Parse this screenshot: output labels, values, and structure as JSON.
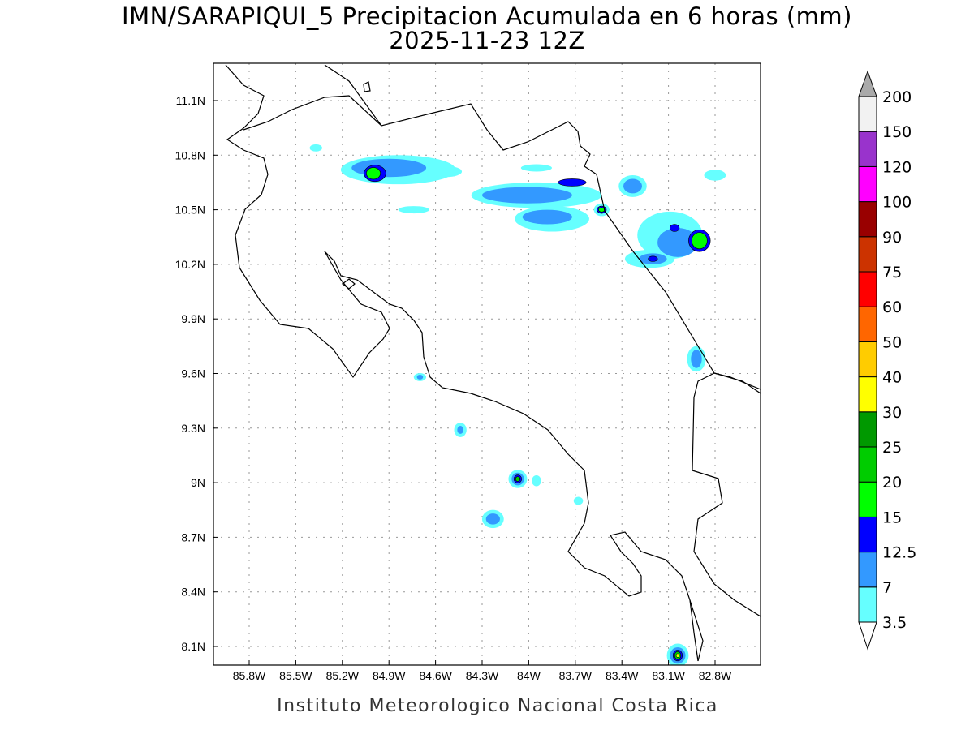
{
  "title": "IMN/SARAPIQUI_5 Precipitacion Acumulada en 6 horas (mm)",
  "subtitle": "2025-11-23 12Z",
  "footer": "Instituto Meteorologico Nacional Costa Rica",
  "lon_ticks": [
    "85.8W",
    "85.5W",
    "85.2W",
    "84.9W",
    "84.6W",
    "84.3W",
    "84W",
    "83.7W",
    "83.4W",
    "83.1W",
    "82.8W"
  ],
  "lat_ticks": [
    "11.1N",
    "10.8N",
    "10.5N",
    "10.2N",
    "9.9N",
    "9.6N",
    "9.3N",
    "9N",
    "8.7N",
    "8.4N",
    "8.1N"
  ],
  "legend": {
    "levels": [
      "3.5",
      "7",
      "12.5",
      "15",
      "20",
      "25",
      "30",
      "40",
      "50",
      "60",
      "75",
      "90",
      "100",
      "120",
      "150",
      "200"
    ],
    "colors": [
      "#66ffff",
      "#3399ff",
      "#0000ff",
      "#00ff00",
      "#00cc00",
      "#009900",
      "#ffff00",
      "#ffcc00",
      "#ff6600",
      "#ff0000",
      "#cc3300",
      "#990000",
      "#ff00ff",
      "#9933cc",
      "#f2f2f2"
    ],
    "overflow_color": "#aaaaaa"
  },
  "precip_cells": [
    {
      "lon": 84.84,
      "lat": 10.72,
      "rlon": 0.37,
      "rlat": 0.08,
      "level": 0
    },
    {
      "lon": 84.9,
      "lat": 10.73,
      "rlon": 0.24,
      "rlat": 0.05,
      "level": 1
    },
    {
      "lon": 84.99,
      "lat": 10.7,
      "rlon": 0.07,
      "rlat": 0.045,
      "level": 2
    },
    {
      "lon": 85.0,
      "lat": 10.7,
      "rlon": 0.045,
      "rlat": 0.032,
      "level": 3
    },
    {
      "lon": 84.53,
      "lat": 10.71,
      "rlon": 0.1,
      "rlat": 0.03,
      "level": 0
    },
    {
      "lon": 85.37,
      "lat": 10.84,
      "rlon": 0.04,
      "rlat": 0.02,
      "level": 0
    },
    {
      "lon": 84.74,
      "lat": 10.5,
      "rlon": 0.1,
      "rlat": 0.02,
      "level": 0
    },
    {
      "lon": 83.95,
      "lat": 10.73,
      "rlon": 0.1,
      "rlat": 0.02,
      "level": 0
    },
    {
      "lon": 83.95,
      "lat": 10.58,
      "rlon": 0.42,
      "rlat": 0.07,
      "level": 0
    },
    {
      "lon": 84.01,
      "lat": 10.58,
      "rlon": 0.29,
      "rlat": 0.045,
      "level": 1
    },
    {
      "lon": 83.72,
      "lat": 10.65,
      "rlon": 0.09,
      "rlat": 0.02,
      "level": 2
    },
    {
      "lon": 83.85,
      "lat": 10.45,
      "rlon": 0.24,
      "rlat": 0.07,
      "level": 0
    },
    {
      "lon": 83.88,
      "lat": 10.46,
      "rlon": 0.16,
      "rlat": 0.04,
      "level": 1
    },
    {
      "lon": 83.53,
      "lat": 10.5,
      "rlon": 0.05,
      "rlat": 0.035,
      "level": 0
    },
    {
      "lon": 83.53,
      "lat": 10.5,
      "rlon": 0.03,
      "rlat": 0.02,
      "level": 2
    },
    {
      "lon": 83.53,
      "lat": 10.5,
      "rlon": 0.02,
      "rlat": 0.012,
      "level": 3
    },
    {
      "lon": 83.33,
      "lat": 10.63,
      "rlon": 0.09,
      "rlat": 0.06,
      "level": 0
    },
    {
      "lon": 83.33,
      "lat": 10.63,
      "rlon": 0.06,
      "rlat": 0.04,
      "level": 1
    },
    {
      "lon": 83.09,
      "lat": 10.36,
      "rlon": 0.21,
      "rlat": 0.13,
      "level": 0
    },
    {
      "lon": 83.04,
      "lat": 10.32,
      "rlon": 0.13,
      "rlat": 0.08,
      "level": 1
    },
    {
      "lon": 83.06,
      "lat": 10.4,
      "rlon": 0.03,
      "rlat": 0.02,
      "level": 2
    },
    {
      "lon": 82.9,
      "lat": 10.33,
      "rlon": 0.07,
      "rlat": 0.06,
      "level": 2
    },
    {
      "lon": 82.9,
      "lat": 10.33,
      "rlon": 0.05,
      "rlat": 0.045,
      "level": 3
    },
    {
      "lon": 83.22,
      "lat": 10.23,
      "rlon": 0.16,
      "rlat": 0.05,
      "level": 0
    },
    {
      "lon": 83.2,
      "lat": 10.23,
      "rlon": 0.09,
      "rlat": 0.03,
      "level": 1
    },
    {
      "lon": 83.2,
      "lat": 10.23,
      "rlon": 0.03,
      "rlat": 0.015,
      "level": 2
    },
    {
      "lon": 82.8,
      "lat": 10.69,
      "rlon": 0.07,
      "rlat": 0.03,
      "level": 0
    },
    {
      "lon": 82.92,
      "lat": 9.68,
      "rlon": 0.06,
      "rlat": 0.07,
      "level": 0
    },
    {
      "lon": 82.92,
      "lat": 9.68,
      "rlon": 0.035,
      "rlat": 0.05,
      "level": 1
    },
    {
      "lon": 84.7,
      "lat": 9.58,
      "rlon": 0.04,
      "rlat": 0.022,
      "level": 0
    },
    {
      "lon": 84.7,
      "lat": 9.58,
      "rlon": 0.02,
      "rlat": 0.013,
      "level": 1
    },
    {
      "lon": 84.44,
      "lat": 9.29,
      "rlon": 0.04,
      "rlat": 0.04,
      "level": 0
    },
    {
      "lon": 84.44,
      "lat": 9.29,
      "rlon": 0.02,
      "rlat": 0.022,
      "level": 1
    },
    {
      "lon": 84.07,
      "lat": 9.02,
      "rlon": 0.06,
      "rlat": 0.05,
      "level": 0
    },
    {
      "lon": 84.07,
      "lat": 9.02,
      "rlon": 0.04,
      "rlat": 0.035,
      "level": 1
    },
    {
      "lon": 84.07,
      "lat": 9.02,
      "rlon": 0.025,
      "rlat": 0.022,
      "level": 2
    },
    {
      "lon": 84.07,
      "lat": 9.02,
      "rlon": 0.015,
      "rlat": 0.013,
      "level": 4
    },
    {
      "lon": 83.95,
      "lat": 9.01,
      "rlon": 0.03,
      "rlat": 0.03,
      "level": 0
    },
    {
      "lon": 84.23,
      "lat": 8.8,
      "rlon": 0.07,
      "rlat": 0.05,
      "level": 0
    },
    {
      "lon": 84.23,
      "lat": 8.8,
      "rlon": 0.045,
      "rlat": 0.03,
      "level": 1
    },
    {
      "lon": 83.68,
      "lat": 8.9,
      "rlon": 0.03,
      "rlat": 0.022,
      "level": 0
    },
    {
      "lon": 83.04,
      "lat": 8.05,
      "rlon": 0.07,
      "rlat": 0.065,
      "level": 0
    },
    {
      "lon": 83.04,
      "lat": 8.05,
      "rlon": 0.05,
      "rlat": 0.045,
      "level": 1
    },
    {
      "lon": 83.04,
      "lat": 8.05,
      "rlon": 0.03,
      "rlat": 0.03,
      "level": 2
    },
    {
      "lon": 83.04,
      "lat": 8.05,
      "rlon": 0.02,
      "rlat": 0.022,
      "level": 4
    },
    {
      "lon": 83.04,
      "lat": 8.05,
      "rlon": 0.01,
      "rlat": 0.01,
      "level": 6
    }
  ]
}
